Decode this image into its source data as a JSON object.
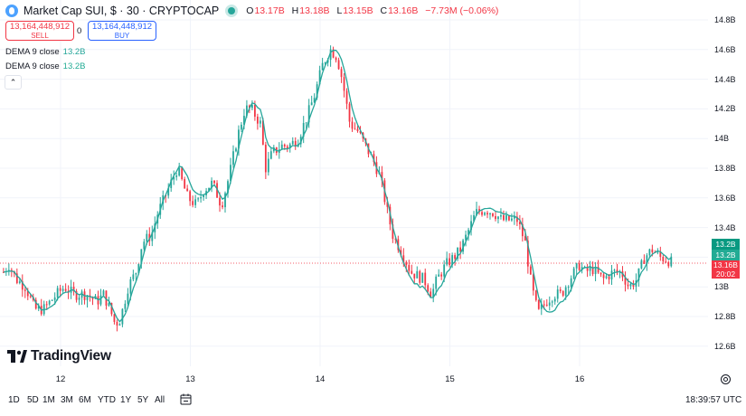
{
  "header": {
    "title": "Market Cap SUI, $ · 30 · CRYPTOCAP",
    "ohlc": [
      {
        "k": "O",
        "v": "13.17B"
      },
      {
        "k": "H",
        "v": "13.18B"
      },
      {
        "k": "L",
        "v": "13.15B"
      },
      {
        "k": "C",
        "v": "13.16B"
      }
    ],
    "change": "−7.73M (−0.06%)",
    "status_color": "#26a69a"
  },
  "trade": {
    "sell_price": "13,164,448,912",
    "sell_label": "SELL",
    "spread": "0",
    "buy_price": "13,164,448,912",
    "buy_label": "BUY"
  },
  "indicators": [
    {
      "label": "DEMA 9 close",
      "value": "13.2B"
    },
    {
      "label": "DEMA 9 close",
      "value": "13.2B"
    }
  ],
  "logo_text": "TradingView",
  "price_tags": {
    "dema1": "13.2B",
    "dema2": "13.2B",
    "last": "13.16B",
    "countdown": "20:02"
  },
  "bottom": {
    "ranges": [
      "1D",
      "5D",
      "1M",
      "3M",
      "6M",
      "YTD",
      "1Y",
      "5Y",
      "All"
    ],
    "clock": "18:39:57 UTC"
  },
  "icons": {
    "collapse": "chevron-up-icon",
    "date_range": "calendar-range-icon",
    "settings": "gear-icon"
  },
  "colors": {
    "up": "#26a69a",
    "down": "#f23645",
    "dema": "#26a69a",
    "dema_tag": "#089981",
    "dema2_tag": "#22ab94",
    "last_tag": "#f23645",
    "grid": "#f0f3fa"
  },
  "chart_data": {
    "type": "candlestick",
    "interval": "30",
    "y_ticks": [
      "14.8B",
      "14.6B",
      "14.4B",
      "14.2B",
      "14B",
      "13.8B",
      "13.6B",
      "13.4B",
      "13.2B",
      "13B",
      "12.8B",
      "12.6B"
    ],
    "x_ticks": [
      "12",
      "13",
      "14",
      "15",
      "16"
    ],
    "ylim": [
      12.55,
      14.85
    ],
    "last_price": 13.16,
    "close_path": [
      [
        11.56,
        13.1
      ],
      [
        11.6,
        13.15
      ],
      [
        11.66,
        13.05
      ],
      [
        11.73,
        13.0
      ],
      [
        11.8,
        12.85
      ],
      [
        11.87,
        12.85
      ],
      [
        11.92,
        12.9
      ],
      [
        11.97,
        12.95
      ],
      [
        12.03,
        13.0
      ],
      [
        12.1,
        12.95
      ],
      [
        12.2,
        12.95
      ],
      [
        12.28,
        12.9
      ],
      [
        12.33,
        12.95
      ],
      [
        12.38,
        12.85
      ],
      [
        12.42,
        12.75
      ],
      [
        12.46,
        12.78
      ],
      [
        12.52,
        13.0
      ],
      [
        12.58,
        13.1
      ],
      [
        12.63,
        13.3
      ],
      [
        12.7,
        13.35
      ],
      [
        12.75,
        13.5
      ],
      [
        12.8,
        13.6
      ],
      [
        12.85,
        13.7
      ],
      [
        12.9,
        13.8
      ],
      [
        12.94,
        13.7
      ],
      [
        12.98,
        13.6
      ],
      [
        13.05,
        13.55
      ],
      [
        13.1,
        13.65
      ],
      [
        13.17,
        13.7
      ],
      [
        13.24,
        13.55
      ],
      [
        13.3,
        13.75
      ],
      [
        13.36,
        14.0
      ],
      [
        13.42,
        14.2
      ],
      [
        13.47,
        14.2
      ],
      [
        13.54,
        14.1
      ],
      [
        13.58,
        13.8
      ],
      [
        13.63,
        13.9
      ],
      [
        13.7,
        13.95
      ],
      [
        13.76,
        13.95
      ],
      [
        13.83,
        14.0
      ],
      [
        13.9,
        14.15
      ],
      [
        13.96,
        14.3
      ],
      [
        14.02,
        14.5
      ],
      [
        14.08,
        14.6
      ],
      [
        14.13,
        14.55
      ],
      [
        14.17,
        14.4
      ],
      [
        14.23,
        14.1
      ],
      [
        14.29,
        14.05
      ],
      [
        14.35,
        13.95
      ],
      [
        14.41,
        13.85
      ],
      [
        14.46,
        13.75
      ],
      [
        14.52,
        13.5
      ],
      [
        14.56,
        13.35
      ],
      [
        14.62,
        13.25
      ],
      [
        14.7,
        13.1
      ],
      [
        14.8,
        13.05
      ],
      [
        14.86,
        12.95
      ],
      [
        14.9,
        13.05
      ],
      [
        14.97,
        13.15
      ],
      [
        15.03,
        13.2
      ],
      [
        15.08,
        13.25
      ],
      [
        15.13,
        13.35
      ],
      [
        15.2,
        13.5
      ],
      [
        15.27,
        13.52
      ],
      [
        15.34,
        13.5
      ],
      [
        15.4,
        13.45
      ],
      [
        15.46,
        13.45
      ],
      [
        15.52,
        13.45
      ],
      [
        15.58,
        13.3
      ],
      [
        15.63,
        13.0
      ],
      [
        15.68,
        12.82
      ],
      [
        15.74,
        12.9
      ],
      [
        15.8,
        12.95
      ],
      [
        15.86,
        12.95
      ],
      [
        15.92,
        13.05
      ],
      [
        16.0,
        13.15
      ],
      [
        16.04,
        13.1
      ],
      [
        16.1,
        13.12
      ],
      [
        16.18,
        13.05
      ],
      [
        16.26,
        13.1
      ],
      [
        16.32,
        13.1
      ],
      [
        16.38,
        13.0
      ],
      [
        16.44,
        13.05
      ],
      [
        16.5,
        13.2
      ],
      [
        16.56,
        13.25
      ],
      [
        16.62,
        13.2
      ],
      [
        16.68,
        13.18
      ],
      [
        16.72,
        13.16
      ]
    ]
  }
}
